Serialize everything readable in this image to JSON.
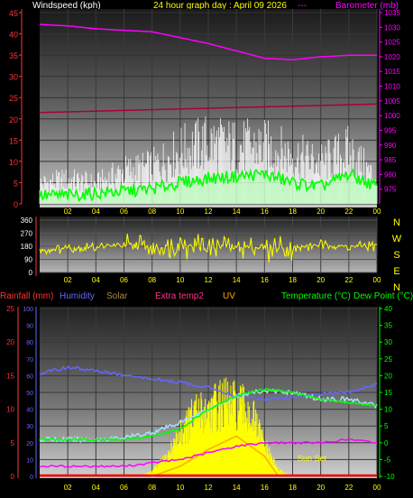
{
  "header": {
    "left_label": "Windspeed (kph)",
    "center_label": "24 hour graph day : April 09 2026",
    "right_label": "Barometer (mb)",
    "dashes": "---"
  },
  "compass": [
    "N",
    "W",
    "S",
    "E",
    "N"
  ],
  "bottom_header": {
    "rainfall": "Rainfall (mm)",
    "humidity": "Humidity",
    "solar": "Solar",
    "extra_temp": "Extra temp2",
    "uv": "UV",
    "temperature": "Temperature (°C)",
    "dewpoint": "Dew Point (°C)"
  },
  "annotation": "Sun Set",
  "colors": {
    "wind_gust": "#ffffff",
    "wind_avg": "#00ff00",
    "wind_axis": "#ff3333",
    "barometer": "#ff00ff",
    "baro_axis": "#ff00ff",
    "dark_red_line": "#aa0033",
    "direction": "#ffff00",
    "humidity": "#6666ff",
    "temperature": "#00ff00",
    "dewpoint": "#aaddff",
    "solar": "#ffff00",
    "extra_temp": "#ff00ff",
    "uv": "#ffaa00",
    "rain_axis": "#ff3333",
    "humidity_axis": "#6666ff",
    "temp_axis": "#00ff00",
    "x_tick": "#ffff00"
  },
  "chart_data": [
    {
      "type": "line",
      "title": "24 hour graph day : April 09 2026",
      "x_ticks": [
        "02",
        "04",
        "06",
        "08",
        "10",
        "12",
        "14",
        "16",
        "18",
        "20",
        "22",
        "00"
      ],
      "left_axis": {
        "label": "Windspeed (kph)",
        "range": [
          0,
          45
        ],
        "ticks": [
          0,
          5,
          10,
          15,
          20,
          25,
          30,
          35,
          40,
          45
        ]
      },
      "right_axis": {
        "label": "Barometer (mb)",
        "range": [
          970,
          1035
        ],
        "ticks": [
          975,
          980,
          985,
          990,
          995,
          1000,
          1005,
          1010,
          1015,
          1020,
          1025,
          1030,
          1035
        ]
      },
      "series": [
        {
          "name": "Barometer",
          "axis": "right",
          "x": [
            0,
            2,
            4,
            6,
            8,
            10,
            12,
            14,
            16,
            18,
            20,
            22,
            24
          ],
          "values": [
            1031,
            1030.5,
            1029.5,
            1029,
            1028.5,
            1026.5,
            1024.5,
            1022,
            1019.5,
            1019,
            1020,
            1020.5,
            1020.5
          ]
        },
        {
          "name": "",
          "axis": "left",
          "x": [
            0,
            24
          ],
          "values": [
            21.5,
            23.5
          ]
        },
        {
          "name": "Windspeed gust",
          "axis": "left",
          "x": [
            0,
            2,
            4,
            6,
            8,
            10,
            12,
            14,
            16,
            18,
            20,
            22,
            24
          ],
          "values": [
            5,
            6,
            5,
            8,
            9,
            13,
            15,
            14,
            14,
            12,
            10,
            13,
            6
          ]
        },
        {
          "name": "Windspeed average",
          "axis": "left",
          "x": [
            0,
            2,
            4,
            6,
            8,
            10,
            12,
            14,
            16,
            18,
            20,
            22,
            24
          ],
          "values": [
            2,
            2,
            2.5,
            3,
            3.5,
            5,
            6,
            6.5,
            7,
            5,
            4,
            7,
            4
          ]
        }
      ]
    },
    {
      "type": "scatter",
      "title": "",
      "x_ticks": [
        "02",
        "04",
        "06",
        "08",
        "10",
        "12",
        "14",
        "16",
        "18",
        "20",
        "22",
        "00"
      ],
      "y_axis": {
        "label": "",
        "range": [
          0,
          360
        ],
        "ticks": [
          0,
          90,
          180,
          270,
          360
        ]
      },
      "series": [
        {
          "name": "Wind direction",
          "x": [
            0,
            2,
            4,
            6,
            8,
            10,
            12,
            14,
            16,
            18,
            20,
            22,
            24
          ],
          "values": [
            150,
            170,
            175,
            185,
            170,
            190,
            180,
            175,
            170,
            165,
            190,
            175,
            185
          ]
        }
      ]
    },
    {
      "type": "line",
      "title": "",
      "x_ticks": [
        "02",
        "04",
        "06",
        "08",
        "10",
        "12",
        "14",
        "16",
        "18",
        "20",
        "22",
        "00"
      ],
      "left_axis": {
        "label": "Rainfall (mm)",
        "range": [
          0,
          25
        ],
        "ticks": [
          0,
          5,
          10,
          15,
          20,
          25
        ]
      },
      "humidity_axis": {
        "label": "Humidity",
        "range": [
          0,
          100
        ],
        "ticks": [
          0,
          10,
          20,
          30,
          40,
          50,
          60,
          70,
          80,
          90,
          100
        ]
      },
      "right_axis": {
        "label": "Temperature (°C)",
        "range": [
          -10,
          40
        ],
        "ticks": [
          -10,
          -5,
          0,
          5,
          10,
          15,
          20,
          25,
          30,
          35,
          40
        ]
      },
      "series": [
        {
          "name": "Humidity",
          "axis": "humidity",
          "x": [
            0,
            2,
            4,
            6,
            8,
            10,
            12,
            14,
            16,
            18,
            20,
            22,
            24
          ],
          "values": [
            61,
            65,
            63,
            60,
            58,
            56,
            53,
            48,
            46,
            47,
            49,
            50,
            55
          ]
        },
        {
          "name": "Temperature (°C)",
          "axis": "right",
          "x": [
            0,
            2,
            4,
            6,
            8,
            10,
            12,
            14,
            16,
            18,
            20,
            22,
            24
          ],
          "values": [
            1,
            1,
            1,
            1,
            2,
            4,
            10,
            14,
            16,
            15,
            13,
            12,
            11
          ]
        },
        {
          "name": "Dew Point (°C)",
          "axis": "right",
          "x": [
            0,
            2,
            4,
            6,
            8,
            10,
            12,
            14,
            16,
            18,
            20,
            22,
            24
          ],
          "values": [
            1,
            1,
            1,
            1.5,
            3,
            6,
            10,
            14,
            15.5,
            15,
            13,
            13,
            11
          ]
        },
        {
          "name": "Solar",
          "axis": "left",
          "x": [
            7,
            8,
            9,
            10,
            11,
            12,
            13,
            14,
            15,
            16,
            17,
            18
          ],
          "values": [
            0,
            0.8,
            3,
            7,
            10,
            11,
            12,
            11.5,
            10.5,
            5,
            1,
            0
          ]
        },
        {
          "name": "Extra temp2",
          "axis": "right",
          "x": [
            0,
            2,
            4,
            6,
            8,
            10,
            12,
            14,
            16,
            18,
            20,
            22,
            24
          ],
          "values": [
            -7,
            -7,
            -7,
            -7,
            -6,
            -5,
            -3,
            -1,
            0,
            0,
            0,
            1,
            0
          ]
        },
        {
          "name": "UV",
          "axis": "left",
          "x": [
            8,
            10,
            12,
            14,
            16,
            17
          ],
          "values": [
            0,
            1.5,
            4,
            6,
            3,
            0
          ]
        },
        {
          "name": "Rainfall (mm)",
          "axis": "left",
          "x": [
            0,
            24
          ],
          "values": [
            0,
            0
          ]
        }
      ]
    }
  ]
}
